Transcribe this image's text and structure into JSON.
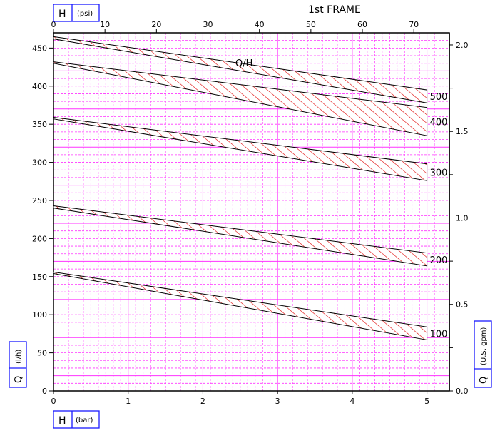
{
  "chart_data": {
    "type": "area",
    "title": "1st FRAME",
    "x_bottom": {
      "label_symbol": "H",
      "label_unit": "(bar)",
      "range": [
        0,
        5.3
      ],
      "ticks": [
        0,
        1,
        2,
        3,
        4,
        5
      ]
    },
    "x_top": {
      "label_symbol": "H",
      "label_unit": "(psi)",
      "range": [
        0,
        76.9
      ],
      "ticks": [
        0,
        10,
        20,
        30,
        40,
        50,
        60,
        70
      ]
    },
    "y_left": {
      "label_symbol": "Q",
      "label_unit": "(l/h)",
      "range": [
        0,
        470
      ],
      "ticks": [
        0,
        50,
        100,
        150,
        200,
        250,
        300,
        350,
        400,
        450
      ]
    },
    "y_right": {
      "label_symbol": "Q",
      "label_unit": "(U.S. gpm)",
      "range": [
        0,
        2.07
      ],
      "ticks": [
        "0.0",
        "0.5",
        "1.0",
        "1.5",
        "2.0"
      ]
    },
    "curve_annotation": "Q/H",
    "grid": true,
    "series": [
      {
        "label": "500",
        "x": [
          0,
          5
        ],
        "upper": [
          465,
          395
        ],
        "lower": [
          462,
          378
        ]
      },
      {
        "label": "400",
        "x": [
          0,
          5
        ],
        "upper": [
          432,
          372
        ],
        "lower": [
          430,
          335
        ]
      },
      {
        "label": "300",
        "x": [
          0,
          5
        ],
        "upper": [
          359,
          298
        ],
        "lower": [
          357,
          276
        ]
      },
      {
        "label": "200",
        "x": [
          0,
          5
        ],
        "upper": [
          243,
          181
        ],
        "lower": [
          240,
          164
        ]
      },
      {
        "label": "100",
        "x": [
          0,
          5
        ],
        "upper": [
          156,
          84
        ],
        "lower": [
          154,
          67
        ]
      }
    ],
    "colors": {
      "grid": "#ff33ff",
      "hatch": "#e00000",
      "frame": "#000000",
      "label_box": "#1a1aff"
    }
  }
}
